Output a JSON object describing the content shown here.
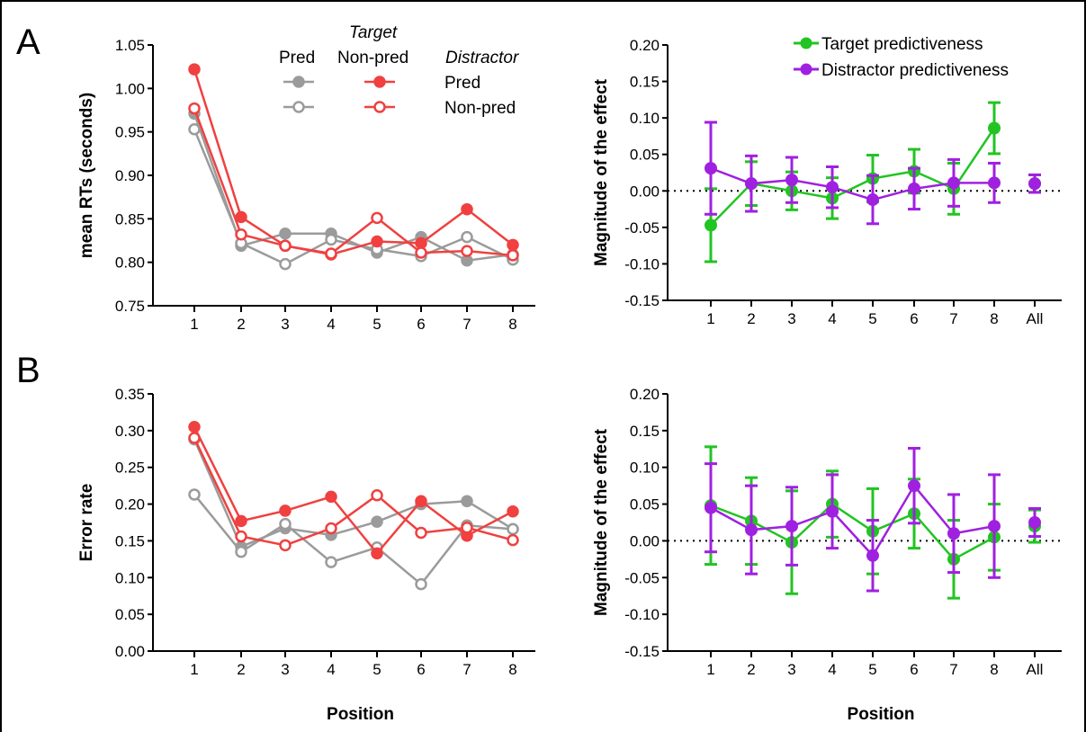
{
  "panel_labels": [
    "A",
    "B"
  ],
  "colors": {
    "pred_gray": "#9b9b9b",
    "nonpred_red": "#f04040",
    "target_green": "#22c422",
    "distractor_purple": "#a020e0"
  },
  "legend_rt": {
    "target_heading": "Target",
    "pred": "Pred",
    "nonpred": "Non-pred",
    "distractor_heading": "Distractor",
    "row_pred": "Pred",
    "row_nonpred": "Non-pred"
  },
  "legend_effect": {
    "target": "Target predictiveness",
    "distractor": "Distractor predictiveness"
  },
  "chart_data": [
    {
      "id": "A-left",
      "type": "line",
      "ylabel": "mean RTs (seconds)",
      "xlabel": "",
      "ylim": [
        0.75,
        1.05
      ],
      "yticks": [
        "0.75",
        "0.80",
        "0.85",
        "0.90",
        "0.95",
        "1.00",
        "1.05"
      ],
      "x": [
        "1",
        "2",
        "3",
        "4",
        "5",
        "6",
        "7",
        "8"
      ],
      "series": [
        {
          "target": "pred",
          "distractor": "pred",
          "values": [
            0.971,
            0.819,
            0.833,
            0.833,
            0.811,
            0.829,
            0.802,
            0.809
          ]
        },
        {
          "target": "pred",
          "distractor": "nonpred",
          "values": [
            0.953,
            0.822,
            0.798,
            0.826,
            0.815,
            0.807,
            0.829,
            0.803
          ]
        },
        {
          "target": "nonpred",
          "distractor": "pred",
          "values": [
            1.022,
            0.852,
            0.819,
            0.809,
            0.824,
            0.822,
            0.861,
            0.82
          ]
        },
        {
          "target": "nonpred",
          "distractor": "nonpred",
          "values": [
            0.977,
            0.832,
            0.819,
            0.81,
            0.851,
            0.811,
            0.813,
            0.808
          ]
        }
      ]
    },
    {
      "id": "A-right",
      "type": "line",
      "ylabel": "Magnitude of the effect",
      "xlabel": "",
      "ylim": [
        -0.15,
        0.2
      ],
      "yticks": [
        "-0.15",
        "-0.10",
        "-0.05",
        "0.00",
        "0.05",
        "0.10",
        "0.15",
        "0.20"
      ],
      "x": [
        "1",
        "2",
        "3",
        "4",
        "5",
        "6",
        "7",
        "8",
        "All"
      ],
      "series": [
        {
          "name": "Target predictiveness",
          "values": [
            -0.047,
            0.01,
            0.0,
            -0.01,
            0.017,
            0.027,
            0.003,
            0.086,
            0.01
          ],
          "err": [
            0.05,
            0.03,
            0.026,
            0.028,
            0.032,
            0.03,
            0.035,
            0.035,
            0.012
          ]
        },
        {
          "name": "Distractor predictiveness",
          "values": [
            0.031,
            0.01,
            0.015,
            0.005,
            -0.012,
            0.003,
            0.011,
            0.011,
            0.01
          ],
          "err": [
            0.063,
            0.038,
            0.031,
            0.028,
            0.033,
            0.028,
            0.032,
            0.027,
            0.012
          ]
        }
      ]
    },
    {
      "id": "B-left",
      "type": "line",
      "ylabel": "Error rate",
      "xlabel": "Position",
      "ylim": [
        0.0,
        0.35
      ],
      "yticks": [
        "0.00",
        "0.05",
        "0.10",
        "0.15",
        "0.20",
        "0.25",
        "0.30",
        "0.35"
      ],
      "x": [
        "1",
        "2",
        "3",
        "4",
        "5",
        "6",
        "7",
        "8"
      ],
      "series": [
        {
          "target": "pred",
          "distractor": "pred",
          "values": [
            0.288,
            0.142,
            0.167,
            0.158,
            0.176,
            0.2,
            0.204,
            0.166
          ]
        },
        {
          "target": "pred",
          "distractor": "nonpred",
          "values": [
            0.213,
            0.135,
            0.173,
            0.121,
            0.141,
            0.091,
            0.171,
            0.166
          ]
        },
        {
          "target": "nonpred",
          "distractor": "pred",
          "values": [
            0.305,
            0.177,
            0.191,
            0.21,
            0.133,
            0.204,
            0.157,
            0.19
          ]
        },
        {
          "target": "nonpred",
          "distractor": "nonpred",
          "values": [
            0.29,
            0.156,
            0.144,
            0.167,
            0.212,
            0.161,
            0.168,
            0.151
          ]
        }
      ]
    },
    {
      "id": "B-right",
      "type": "line",
      "ylabel": "Magnitude of the effect",
      "xlabel": "Position",
      "ylim": [
        -0.15,
        0.2
      ],
      "yticks": [
        "-0.15",
        "-0.10",
        "-0.05",
        "0.00",
        "0.05",
        "0.10",
        "0.15",
        "0.20"
      ],
      "x": [
        "1",
        "2",
        "3",
        "4",
        "5",
        "6",
        "7",
        "8",
        "All"
      ],
      "series": [
        {
          "name": "Target predictiveness",
          "values": [
            0.048,
            0.027,
            -0.002,
            0.05,
            0.013,
            0.037,
            -0.025,
            0.005,
            0.02
          ],
          "err": [
            0.08,
            0.059,
            0.07,
            0.045,
            0.058,
            0.047,
            0.053,
            0.045,
            0.022
          ]
        },
        {
          "name": "Distractor predictiveness",
          "values": [
            0.045,
            0.015,
            0.02,
            0.04,
            -0.02,
            0.075,
            0.01,
            0.02,
            0.025
          ],
          "err": [
            0.06,
            0.06,
            0.053,
            0.05,
            0.048,
            0.051,
            0.053,
            0.07,
            0.019
          ]
        }
      ]
    }
  ]
}
